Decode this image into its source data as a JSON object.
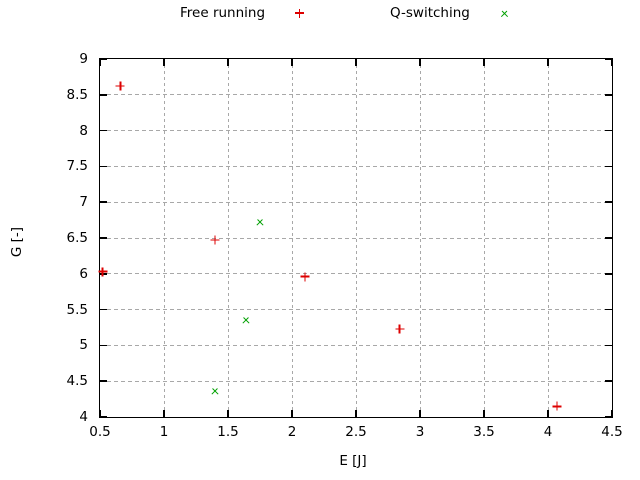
{
  "chart_data": {
    "type": "scatter",
    "title": "",
    "xlabel": "E [J]",
    "ylabel": "G [-]",
    "xlim": [
      0.5,
      4.5
    ],
    "ylim": [
      4,
      9
    ],
    "grid": true,
    "legend_position": "top-center",
    "xticks": {
      "values": [
        0.5,
        1,
        1.5,
        2,
        2.5,
        3,
        3.5,
        4,
        4.5
      ],
      "labels": [
        "0.5",
        "1",
        "1.5",
        "2",
        "2.5",
        "3",
        "3.5",
        "4",
        "4.5"
      ]
    },
    "yticks": {
      "values": [
        4,
        4.5,
        5,
        5.5,
        6,
        6.5,
        7,
        7.5,
        8,
        8.5,
        9
      ],
      "labels": [
        "4",
        "4.5",
        "5",
        "5.5",
        "6",
        "6.5",
        "7",
        "7.5",
        "8",
        "8.5",
        "9"
      ]
    },
    "colors": {
      "grid": "#a8a8a8",
      "border": "#000000",
      "text": "#000000",
      "background": "#ffffff"
    },
    "series": [
      {
        "name": "Free running",
        "marker": "plus",
        "color": "#dd0000",
        "points": [
          [
            0.52,
            6.03
          ],
          [
            0.66,
            8.62
          ],
          [
            1.4,
            6.47
          ],
          [
            2.1,
            5.96
          ],
          [
            2.84,
            5.23
          ],
          [
            4.07,
            4.15
          ]
        ]
      },
      {
        "name": "Q-switching",
        "marker": "cross",
        "color": "#00a000",
        "points": [
          [
            1.75,
            6.73
          ],
          [
            1.64,
            5.35
          ],
          [
            1.4,
            4.37
          ]
        ]
      }
    ]
  }
}
